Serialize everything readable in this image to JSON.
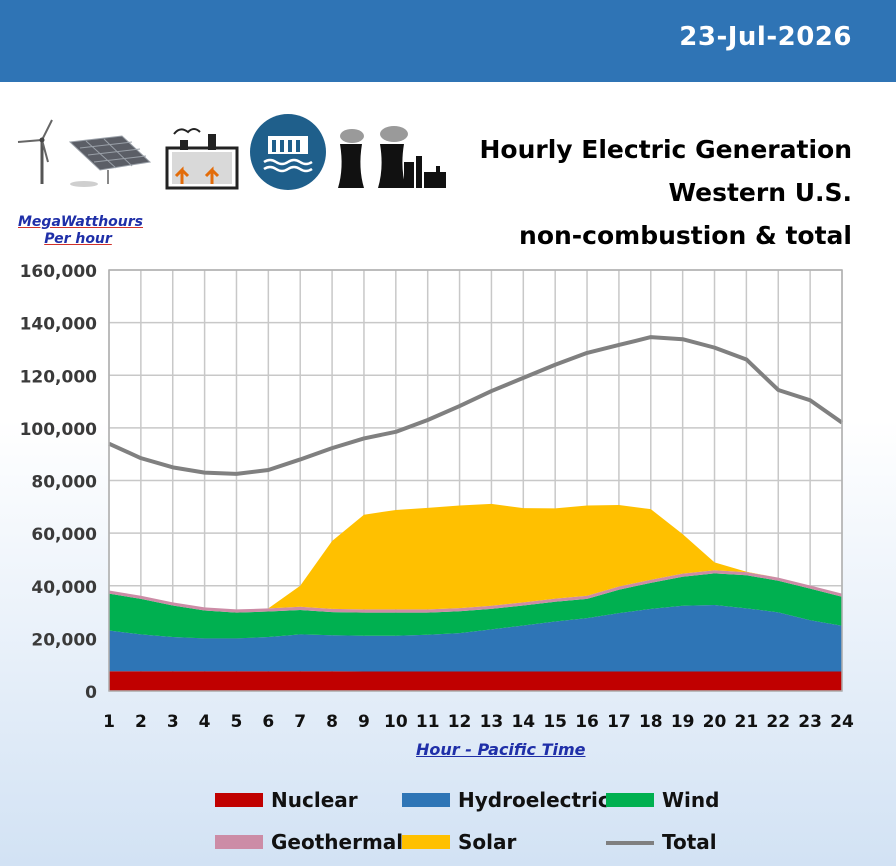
{
  "header": {
    "date": "23-Jul-2026",
    "title_line1": "Hourly Electric Generation",
    "title_line2": "Western U.S.",
    "title_line3": "non-combustion & total"
  },
  "icons": [
    "wind-turbine-icon",
    "solar-panel-icon",
    "geothermal-plant-icon",
    "hydro-dam-icon",
    "power-plant-icon"
  ],
  "colors": {
    "nuclear": "#c00000",
    "hydro": "#2e75b6",
    "wind": "#00b050",
    "geothermal": "#cc8ca6",
    "solar": "#ffc000",
    "total": "#808080",
    "header_bar": "#2f74b5"
  },
  "chart_data": {
    "type": "area",
    "ylabel": "MegaWatthours Per hour",
    "ylabel_line1": "MegaWatthours",
    "ylabel_line2": "Per hour",
    "xlabel": "Hour - Pacific Time",
    "ylim": [
      0,
      160000
    ],
    "yticks": [
      0,
      20000,
      40000,
      60000,
      80000,
      100000,
      120000,
      140000,
      160000
    ],
    "ytick_labels": [
      "0",
      "20,000",
      "40,000",
      "60,000",
      "80,000",
      "100,000",
      "120,000",
      "140,000",
      "160,000"
    ],
    "x": [
      1,
      2,
      3,
      4,
      5,
      6,
      7,
      8,
      9,
      10,
      11,
      12,
      13,
      14,
      15,
      16,
      17,
      18,
      19,
      20,
      21,
      22,
      23,
      24
    ],
    "x_labels": [
      "1",
      "2",
      "3",
      "4",
      "5",
      "6",
      "7",
      "8",
      "9",
      "10",
      "11",
      "12",
      "13",
      "14",
      "15",
      "16",
      "17",
      "18",
      "19",
      "20",
      "21",
      "22",
      "23",
      "24"
    ],
    "grid": true,
    "legend_position": "bottom",
    "series": [
      {
        "name": "Nuclear",
        "kind": "stacked-area",
        "values": [
          7500,
          7500,
          7500,
          7500,
          7500,
          7500,
          7500,
          7500,
          7400,
          7400,
          7400,
          7400,
          7400,
          7400,
          7400,
          7400,
          7400,
          7400,
          7400,
          7400,
          7400,
          7400,
          7400,
          7400
        ]
      },
      {
        "name": "Hydroelectric",
        "kind": "stacked-area",
        "values": [
          15500,
          14000,
          13000,
          12500,
          12500,
          13000,
          14000,
          13700,
          13600,
          13600,
          14000,
          14600,
          16000,
          17500,
          19000,
          20300,
          22200,
          23800,
          25000,
          25300,
          24000,
          22500,
          19500,
          17400
        ]
      },
      {
        "name": "Wind",
        "kind": "stacked-area",
        "values": [
          14000,
          13500,
          12000,
          10600,
          9800,
          9700,
          9300,
          8800,
          8800,
          8800,
          8400,
          8300,
          7800,
          7600,
          7500,
          7300,
          8900,
          9900,
          11000,
          12000,
          12600,
          12000,
          12000,
          11000
        ]
      },
      {
        "name": "Geothermal",
        "kind": "stacked-area",
        "values": [
          1200,
          1200,
          1200,
          1200,
          1200,
          1200,
          1200,
          1200,
          1200,
          1200,
          1200,
          1200,
          1200,
          1200,
          1200,
          1200,
          1200,
          1200,
          1200,
          1200,
          1200,
          1200,
          1200,
          1200
        ]
      },
      {
        "name": "Solar",
        "kind": "stacked-area",
        "values": [
          0,
          0,
          0,
          0,
          0,
          0,
          8000,
          25800,
          36000,
          37800,
          38600,
          39000,
          38700,
          35800,
          34300,
          34300,
          31000,
          26800,
          15000,
          3000,
          100,
          0,
          0,
          0
        ]
      },
      {
        "name": "Total",
        "kind": "line",
        "values": [
          94000,
          88500,
          85000,
          83000,
          82500,
          84000,
          88000,
          92300,
          96000,
          98500,
          103000,
          108300,
          114000,
          119000,
          124000,
          128500,
          131500,
          134500,
          133700,
          130500,
          126000,
          114400,
          110500,
          102000
        ]
      }
    ]
  }
}
